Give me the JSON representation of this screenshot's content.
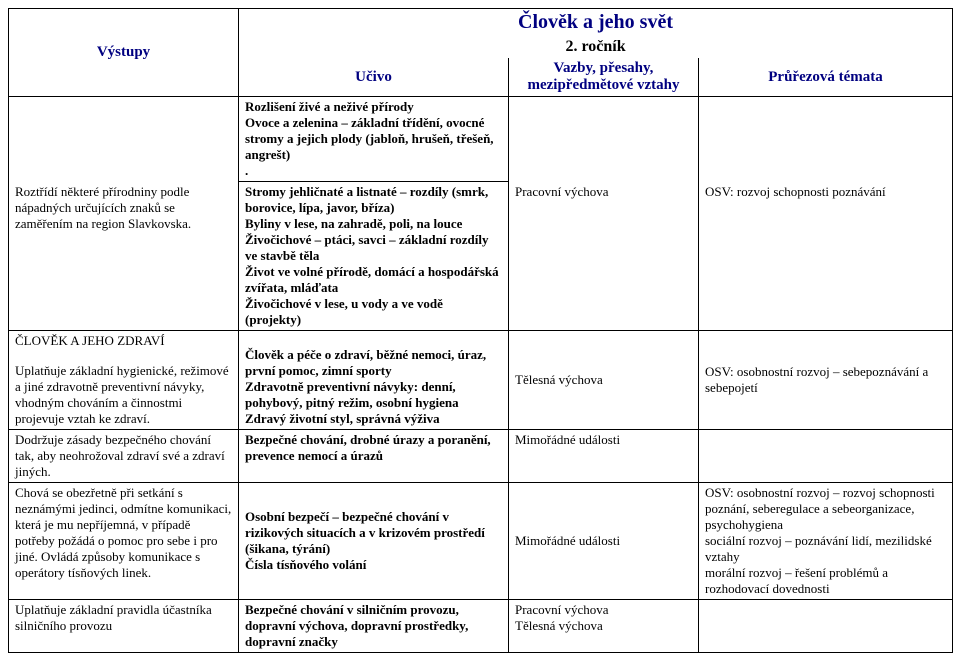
{
  "title": "Člověk a jeho svět",
  "subtitle": "2. ročník",
  "headers": {
    "vystupy": "Výstupy",
    "ucivo": "Učivo",
    "vazby": "Vazby, přesahy, mezipředmětové vztahy",
    "prurezova": "Průřezová témata"
  },
  "intro_ucivo": "Rozlišení živé a neživé přírody\nOvoce a zelenina – základní třídění, ovocné stromy a jejich plody (jabloň, hrušeň, třešeň, angrešt)\n.",
  "rows": [
    {
      "vystupy": "Roztřídí některé přírodniny podle nápadných určujících znaků se zaměřením na region Slavkovska.",
      "ucivo": "Stromy jehličnaté a listnaté – rozdíly (smrk, borovice, lípa, javor, bříza)\nByliny v lese, na zahradě, poli, na louce\nŽivočichové – ptáci, savci – základní rozdíly ve stavbě těla\nŽivot ve volné přírodě, domácí a hospodářská zvířata, mláďata\nŽivočichové v lese, u vody a ve vodě (projekty)",
      "vazby": "Pracovní výchova",
      "prurezova": "OSV: rozvoj schopnosti poznávání"
    },
    {
      "vystupy_heading": "ČLOVĚK A JEHO ZDRAVÍ",
      "vystupy": "Uplatňuje základní hygienické, režimové a jiné zdravotně preventivní návyky, vhodným chováním a činnostmi projevuje vztah ke zdraví.",
      "ucivo": "Člověk a péče o zdraví, běžné nemoci, úraz, první pomoc, zimní sporty\nZdravotně preventivní návyky: denní, pohybový, pitný režim, osobní hygiena\nZdravý životní styl,  správná výživa",
      "vazby": "Tělesná výchova",
      "prurezova": "OSV: osobnostní rozvoj – sebepoznávání a sebepojetí"
    },
    {
      "vystupy": "Dodržuje zásady bezpečného chování tak, aby neohrožoval zdraví své a zdraví jiných.",
      "ucivo": "Bezpečné chování, drobné úrazy a poranění, prevence nemocí a úrazů",
      "vazby": "Mimořádné události",
      "prurezova": ""
    },
    {
      "vystupy": "Chová se obezřetně při setkání s neznámými jedinci, odmítne komunikaci, která je mu nepříjemná, v případě potřeby požádá o pomoc pro sebe i pro jiné. Ovládá způsoby komunikace s operátory tísňových linek.",
      "ucivo": "Osobní bezpečí – bezpečné chování v rizikových situacích a v krizovém prostředí (šikana, týrání)\nČísla tísňového volání",
      "vazby": "Mimořádné události",
      "prurezova": "OSV: osobnostní rozvoj – rozvoj schopnosti poznání, seberegulace a sebeorganizace, psychohygiena\nsociální rozvoj – poznávání lidí, mezilidské vztahy\nmorální rozvoj – řešení problémů a rozhodovací dovednosti"
    },
    {
      "vystupy": "Uplatňuje základní pravidla účastníka silničního provozu",
      "ucivo": "Bezpečné chování v silničním provozu, dopravní výchova, dopravní prostředky, dopravní značky",
      "vazby": "Pracovní výchova\nTělesná výchova",
      "prurezova": ""
    }
  ]
}
